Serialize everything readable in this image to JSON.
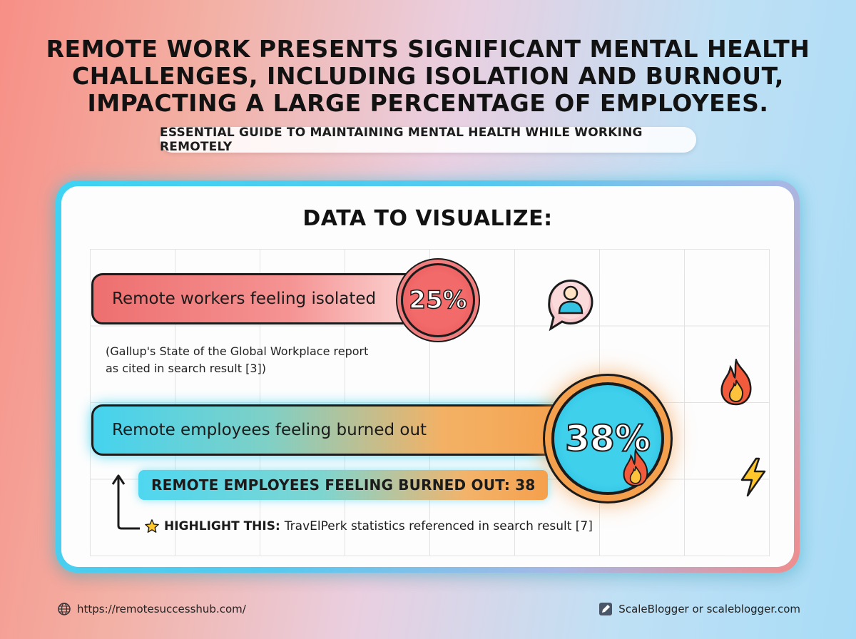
{
  "headline": "REMOTE WORK PRESENTS SIGNIFICANT MENTAL HEALTH CHALLENGES, INCLUDING ISOLATION AND BURNOUT, IMPACTING A LARGE PERCENTAGE OF EMPLOYEES.",
  "subtitle": "ESSENTIAL GUIDE TO MAINTAINING MENTAL HEALTH WHILE WORKING REMOTELY",
  "card": {
    "title": "DATA TO VISUALIZE:",
    "source_note": "(Gallup's State of the Global Workplace report\nas cited in search result [3])",
    "callout": "REMOTE EMPLOYEES FEELING BURNED OUT: 38",
    "highlight_label": "HIGHLIGHT THIS:",
    "highlight_text": "TravElPerk statistics referenced in search result [7]"
  },
  "chart_data": {
    "type": "bar",
    "orientation": "horizontal",
    "categories": [
      "Remote workers feeling isolated",
      "Remote employees feeling burned out"
    ],
    "values": [
      25,
      38
    ],
    "value_labels": [
      "25%",
      "38%"
    ],
    "xlim": [
      0,
      40
    ],
    "grid": true,
    "colors": [
      "#ee6f6f",
      "#45d3ef"
    ]
  },
  "footer": {
    "url": "https://remotesuccesshub.com/",
    "brand": "ScaleBlogger or scaleblogger.com"
  },
  "icons": {
    "person": "person-icon",
    "fire": "fire-icon",
    "bolt": "lightning-bolt-icon",
    "star": "star-icon",
    "globe": "globe-icon",
    "pen": "pen-icon",
    "arrow": "arrow-up-icon"
  },
  "colors": {
    "isolated": "#ee6f6f",
    "burnout_start": "#45d3ef",
    "burnout_end": "#f5a04c",
    "frame": "#3fd3f2"
  }
}
